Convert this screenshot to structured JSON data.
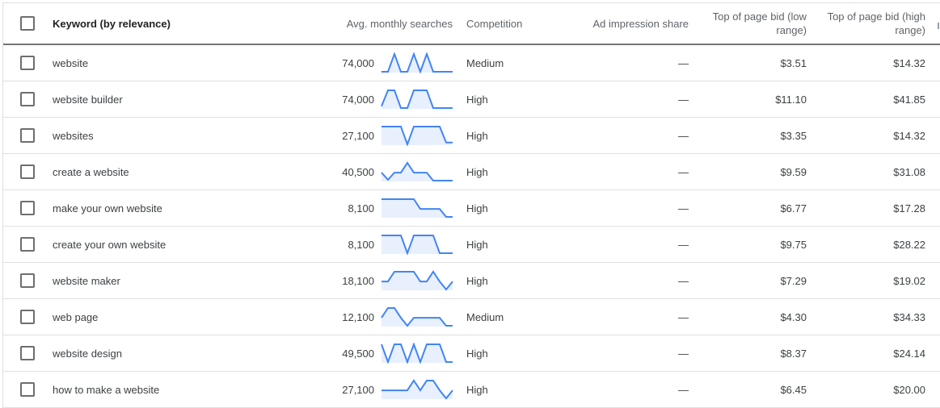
{
  "header": {
    "keyword": "Keyword (by relevance)",
    "avg_monthly_searches": "Avg. monthly searches",
    "competition": "Competition",
    "ad_impression_share": "Ad impression share",
    "bid_low": "Top of page bid (low range)",
    "bid_high": "Top of page bid (high range)"
  },
  "colors": {
    "sparkline_stroke": "#4285f4",
    "sparkline_fill": "#e8f0fe",
    "header_divider": "#757575",
    "row_divider": "#e0e0e0"
  },
  "rows": [
    {
      "keyword": "website",
      "searches": "74,000",
      "trend": [
        0,
        0,
        1,
        0,
        0,
        1,
        0,
        1,
        0,
        0,
        0,
        0
      ],
      "competition": "Medium",
      "impression_share": "—",
      "bid_low": "$3.51",
      "bid_high": "$14.32"
    },
    {
      "keyword": "website builder",
      "searches": "74,000",
      "trend": [
        0.1,
        1,
        1,
        0,
        0,
        1,
        1,
        1,
        0,
        0,
        0,
        0
      ],
      "competition": "High",
      "impression_share": "—",
      "bid_low": "$11.10",
      "bid_high": "$41.85"
    },
    {
      "keyword": "websites",
      "searches": "27,100",
      "trend": [
        1,
        1,
        1,
        1,
        0,
        1,
        1,
        1,
        1,
        1,
        0.1,
        0.1
      ],
      "competition": "High",
      "impression_share": "—",
      "bid_low": "$3.35",
      "bid_high": "$14.32"
    },
    {
      "keyword": "create a website",
      "searches": "40,500",
      "trend": [
        0.45,
        0.05,
        0.45,
        0.45,
        1,
        0.45,
        0.45,
        0.45,
        0,
        0,
        0,
        0
      ],
      "competition": "High",
      "impression_share": "—",
      "bid_low": "$9.59",
      "bid_high": "$31.08"
    },
    {
      "keyword": "make your own website",
      "searches": "8,100",
      "trend": [
        1,
        1,
        1,
        1,
        1,
        1,
        0.45,
        0.45,
        0.45,
        0.45,
        0,
        0
      ],
      "competition": "High",
      "impression_share": "—",
      "bid_low": "$6.77",
      "bid_high": "$17.28"
    },
    {
      "keyword": "create your own website",
      "searches": "8,100",
      "trend": [
        1,
        1,
        1,
        1,
        0,
        1,
        1,
        1,
        1,
        0,
        0,
        0
      ],
      "competition": "High",
      "impression_share": "—",
      "bid_low": "$9.75",
      "bid_high": "$28.22"
    },
    {
      "keyword": "website maker",
      "searches": "18,100",
      "trend": [
        0.45,
        0.45,
        1,
        1,
        1,
        1,
        0.45,
        0.45,
        1,
        0.45,
        0,
        0.45
      ],
      "competition": "High",
      "impression_share": "—",
      "bid_low": "$7.29",
      "bid_high": "$19.02"
    },
    {
      "keyword": "web page",
      "searches": "12,100",
      "trend": [
        0.45,
        1,
        1,
        0.45,
        0,
        0.45,
        0.45,
        0.45,
        0.45,
        0.45,
        0,
        0
      ],
      "competition": "Medium",
      "impression_share": "—",
      "bid_low": "$4.30",
      "bid_high": "$34.33"
    },
    {
      "keyword": "website design",
      "searches": "49,500",
      "trend": [
        1,
        0,
        1,
        1,
        0,
        1,
        0,
        1,
        1,
        1,
        0,
        0
      ],
      "competition": "High",
      "impression_share": "—",
      "bid_low": "$8.37",
      "bid_high": "$24.14"
    },
    {
      "keyword": "how to make a website",
      "searches": "27,100",
      "trend": [
        0.45,
        0.45,
        0.45,
        0.45,
        0.45,
        1,
        0.45,
        1,
        1,
        0.45,
        0,
        0.45
      ],
      "competition": "High",
      "impression_share": "—",
      "bid_low": "$6.45",
      "bid_high": "$20.00"
    }
  ]
}
